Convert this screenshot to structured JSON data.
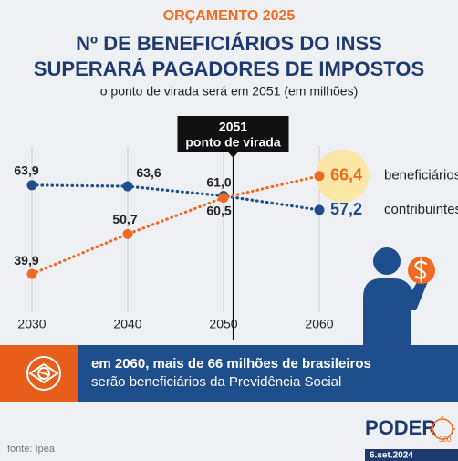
{
  "header": {
    "kicker": "ORÇAMENTO 2025",
    "title_lines": [
      "Nº DE BENEFICIÁRIOS DO INSS",
      "SUPERARÁ PAGADORES DE IMPOSTOS"
    ],
    "subtitle": "o ponto de virada será em 2051 (em milhões)"
  },
  "chart_data": {
    "type": "line",
    "x": [
      2030,
      2040,
      2050,
      2060
    ],
    "xlim": [
      2028,
      2062
    ],
    "xticks": [
      2030,
      2040,
      2050,
      2060
    ],
    "ylim": [
      35,
      72
    ],
    "grid": true,
    "turning_point": {
      "x": 2051,
      "text": "ponto de virada"
    },
    "series": [
      {
        "name": "contribuintes",
        "color": "#1f4e8c",
        "values": [
          63.9,
          63.6,
          61.0,
          57.2
        ],
        "value_labels": [
          "63,9",
          "63,6",
          "61,0",
          "57,2"
        ]
      },
      {
        "name": "beneficiários",
        "color": "#f26a21",
        "values": [
          39.9,
          50.7,
          60.5,
          66.4
        ],
        "value_labels": [
          "39,9",
          "50,7",
          "60,5",
          "66,4"
        ]
      }
    ]
  },
  "banner": {
    "lines": [
      "em 2060, mais de 66 milhões de brasileiros",
      "serão beneficiários da Previdência Social"
    ]
  },
  "footer": {
    "source": "fonte: Ipea",
    "brand": "PODER",
    "brand_sub": "360",
    "date": "6.set.2024"
  }
}
